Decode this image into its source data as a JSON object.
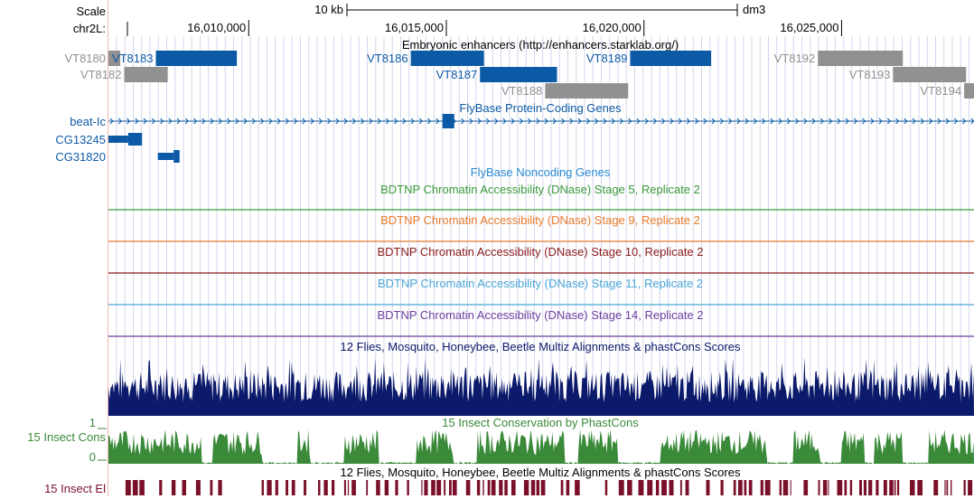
{
  "browser": {
    "assembly": "dm3",
    "chrom_label": "chr2L:",
    "scale_label": "Scale",
    "scale_bar": "10 kb"
  },
  "ruler": {
    "ticks": [
      {
        "label": "16,010,000",
        "pos": 16010000
      },
      {
        "label": "16,015,000",
        "pos": 16015000
      },
      {
        "label": "16,020,000",
        "pos": 16020000
      },
      {
        "label": "16,025,000",
        "pos": 16025000
      }
    ]
  },
  "colors": {
    "blue_gene": "#0c5aa6",
    "gray_enh": "#919191",
    "stage5": "#3a9a3a",
    "stage9": "#e87a2b",
    "stage10": "#8b1a1a",
    "stage11": "#4aa6d6",
    "stage14": "#6b3fa0",
    "multiz": "#0c1a6b",
    "cons": "#3a8a3a",
    "elements": "#7a0f2a",
    "grid": "#d6d6ee",
    "left_border": "#f2b6b6"
  },
  "tracks": {
    "enhancers_title": "Embryonic enhancers (http://enhancers.starklab.org/)",
    "enhancers": [
      {
        "name": "VT8180",
        "start": 16006450,
        "end": 16006750,
        "color": "gray"
      },
      {
        "name": "VT8182",
        "start": 16006850,
        "end": 16007950,
        "color": "gray"
      },
      {
        "name": "VT8183",
        "start": 16007650,
        "end": 16009700,
        "color": "blue"
      },
      {
        "name": "VT8186",
        "start": 16014100,
        "end": 16015950,
        "color": "blue"
      },
      {
        "name": "VT8187",
        "start": 16015850,
        "end": 16017800,
        "color": "blue"
      },
      {
        "name": "VT8188",
        "start": 16017500,
        "end": 16019600,
        "color": "gray"
      },
      {
        "name": "VT8189",
        "start": 16019650,
        "end": 16021700,
        "color": "blue"
      },
      {
        "name": "VT8192",
        "start": 16024400,
        "end": 16026550,
        "color": "gray"
      },
      {
        "name": "VT8193",
        "start": 16026300,
        "end": 16028150,
        "color": "gray"
      },
      {
        "name": "VT8194",
        "start": 16028100,
        "end": 16028350,
        "color": "gray"
      }
    ],
    "coding_title": "FlyBase Protein-Coding Genes",
    "genes": [
      {
        "name": "beat-Ic",
        "start": 16006450,
        "end": 16028350,
        "exons": [
          [
            16014900,
            16015200
          ]
        ]
      },
      {
        "name": "CG13245",
        "start": 16006450,
        "end": 16007300,
        "exons": [
          [
            16006450,
            16006950
          ],
          [
            16006950,
            16007300
          ]
        ]
      },
      {
        "name": "CG31820",
        "start": 16007700,
        "end": 16008250,
        "exons": [
          [
            16007700,
            16008100
          ],
          [
            16008100,
            16008250
          ]
        ]
      }
    ],
    "noncoding_title": "FlyBase Noncoding Genes",
    "dnase": [
      {
        "title": "BDTNP Chromatin Accessibility (DNase) Stage 5, Replicate 2",
        "color": "stage5"
      },
      {
        "title": "BDTNP Chromatin Accessibility (DNase) Stage 9, Replicate 2",
        "color": "stage9"
      },
      {
        "title": "BDTNP Chromatin Accessibility (DNase) Stage 10, Replicate 2",
        "color": "stage10"
      },
      {
        "title": "BDTNP Chromatin Accessibility (DNase) Stage 11, Replicate 2",
        "color": "stage11"
      },
      {
        "title": "BDTNP Chromatin Accessibility (DNase) Stage 14, Replicate 2",
        "color": "stage14"
      }
    ],
    "multiz_title": "12 Flies, Mosquito, Honeybee, Beetle Multiz Alignments & phastCons Scores",
    "cons_title": "15 Insect Conservation by PhastCons",
    "cons_label": "15 Insect Cons",
    "cons_axis": {
      "max": "1",
      "min": "0"
    },
    "elements_title": "12 Flies, Mosquito, Honeybee, Beetle Multiz Alignments & phastCons Scores",
    "elements_label": "15 Insect El"
  }
}
